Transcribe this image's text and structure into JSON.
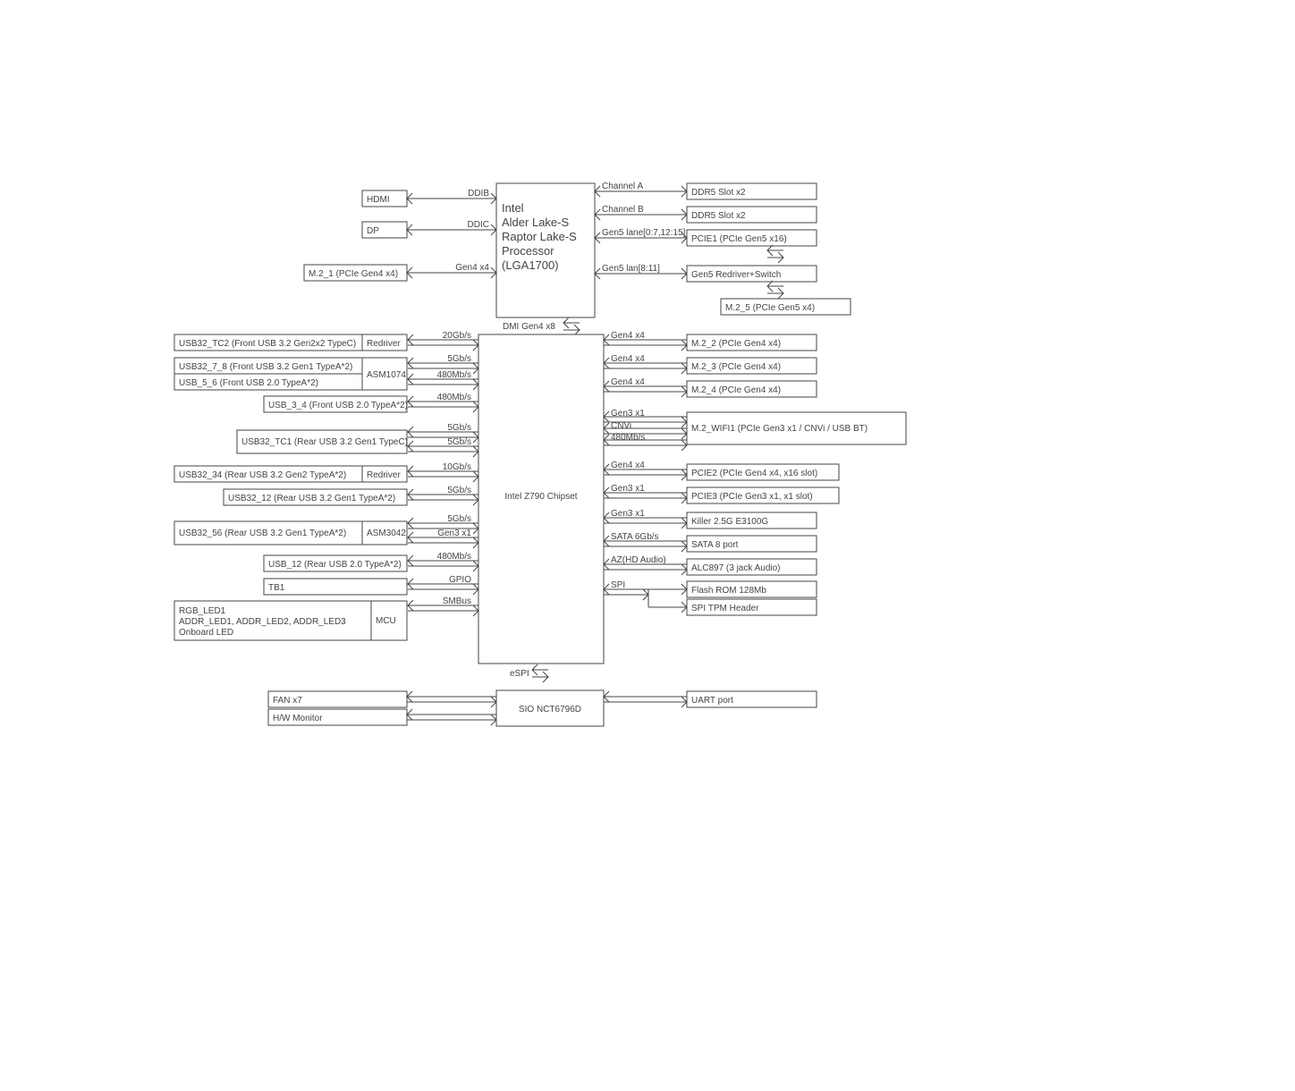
{
  "diagram": {
    "type": "block-diagram",
    "background_color": "#ffffff",
    "stroke_color": "#444444",
    "text_color": "#444444",
    "font_size_small": 10,
    "font_size_large": 13,
    "cpu": {
      "lines": [
        "Intel",
        "Alder Lake-S",
        "Raptor Lake-S",
        "Processor",
        "(LGA1700)"
      ]
    },
    "chipset": {
      "label": "Intel Z790 Chipset"
    },
    "sio": {
      "label": "SIO NCT6796D"
    },
    "cpu_left": [
      {
        "label": "HDMI",
        "bus": "DDIB"
      },
      {
        "label": "DP",
        "bus": "DDIC"
      },
      {
        "label": "M.2_1 (PCIe Gen4 x4)",
        "bus": "Gen4 x4"
      }
    ],
    "cpu_right": [
      {
        "label": "DDR5 Slot x2",
        "bus": "Channel A"
      },
      {
        "label": "DDR5 Slot x2",
        "bus": "Channel B"
      },
      {
        "label": "PCIE1 (PCIe Gen5 x16)",
        "bus": "Gen5 lane[0:7,12:15]"
      },
      {
        "label": "Gen5 Redriver+Switch",
        "bus": "Gen5 lan[8:11]"
      },
      {
        "label": "M.2_5 (PCIe Gen5 x4)",
        "bus": ""
      }
    ],
    "dmi_label": "DMI Gen4 x8",
    "espi_label": "eSPI",
    "chipset_left": [
      {
        "main": "USB32_TC2 (Front USB 3.2 Gen2x2 TypeC)",
        "chip": "Redriver",
        "bus": "20Gb/s"
      },
      {
        "main": "USB32_7_8 (Front USB 3.2 Gen1 TypeA*2)",
        "chip": "ASM1074",
        "bus": "5Gb/s",
        "has_second_row": true,
        "main2": "USB_5_6 (Front USB 2.0 TypeA*2)",
        "bus2": "480Mb/s"
      },
      {
        "main": "USB_3_4 (Front USB 2.0 TypeA*2)",
        "bus": "480Mb/s"
      },
      {
        "main": "USB32_TC1 (Rear USB 3.2 Gen1  TypeC)",
        "bus": "5Gb/s",
        "bus_under": "5Gb/s"
      },
      {
        "main": "USB32_34 (Rear USB 3.2 Gen2 TypeA*2)",
        "chip": "Redriver",
        "bus": "10Gb/s"
      },
      {
        "main": "USB32_12 (Rear USB 3.2 Gen1 TypeA*2)",
        "bus": "5Gb/s"
      },
      {
        "main": "USB32_56 (Rear USB 3.2 Gen1 TypeA*2)",
        "chip": "ASM3042",
        "bus": "5Gb/s",
        "bus_under": "Gen3 x1"
      },
      {
        "main": "USB_12 (Rear USB 2.0 TypeA*2)",
        "bus": "480Mb/s"
      },
      {
        "main": "TB1",
        "bus": "GPIO"
      },
      {
        "main": "RGB_LED1\nADDR_LED1, ADDR_LED2, ADDR_LED3\nOnboard LED",
        "chip": "MCU",
        "bus": "SMBus"
      }
    ],
    "chipset_right": [
      {
        "label": "M.2_2 (PCIe Gen4 x4)",
        "bus": "Gen4 x4"
      },
      {
        "label": "M.2_3 (PCIe Gen4 x4)",
        "bus": "Gen4 x4"
      },
      {
        "label": "M.2_4 (PCIe Gen4 x4)",
        "bus": "Gen4 x4"
      },
      {
        "label": "M.2_WIFI1 (PCIe Gen3 x1 / CNVi / USB BT)",
        "bus": "Gen3 x1",
        "bus2": "CNVi",
        "bus3": "480Mb/s"
      },
      {
        "label": "PCIE2 (PCIe Gen4 x4, x16 slot)",
        "bus": "Gen4 x4"
      },
      {
        "label": "PCIE3 (PCIe Gen3 x1, x1 slot)",
        "bus": "Gen3 x1"
      },
      {
        "label": "Killer 2.5G E3100G",
        "bus": "Gen3 x1"
      },
      {
        "label": "SATA 8 port",
        "bus": "SATA 6Gb/s"
      },
      {
        "label": "ALC897 (3 jack Audio)",
        "bus": "AZ(HD Audio)"
      },
      {
        "label": "Flash ROM 128Mb",
        "bus": "SPI",
        "combined_below": "SPI TPM Header"
      }
    ],
    "sio_left": [
      {
        "label": "FAN x7"
      },
      {
        "label": "H/W Monitor"
      }
    ],
    "sio_right": [
      {
        "label": "UART port"
      }
    ]
  }
}
